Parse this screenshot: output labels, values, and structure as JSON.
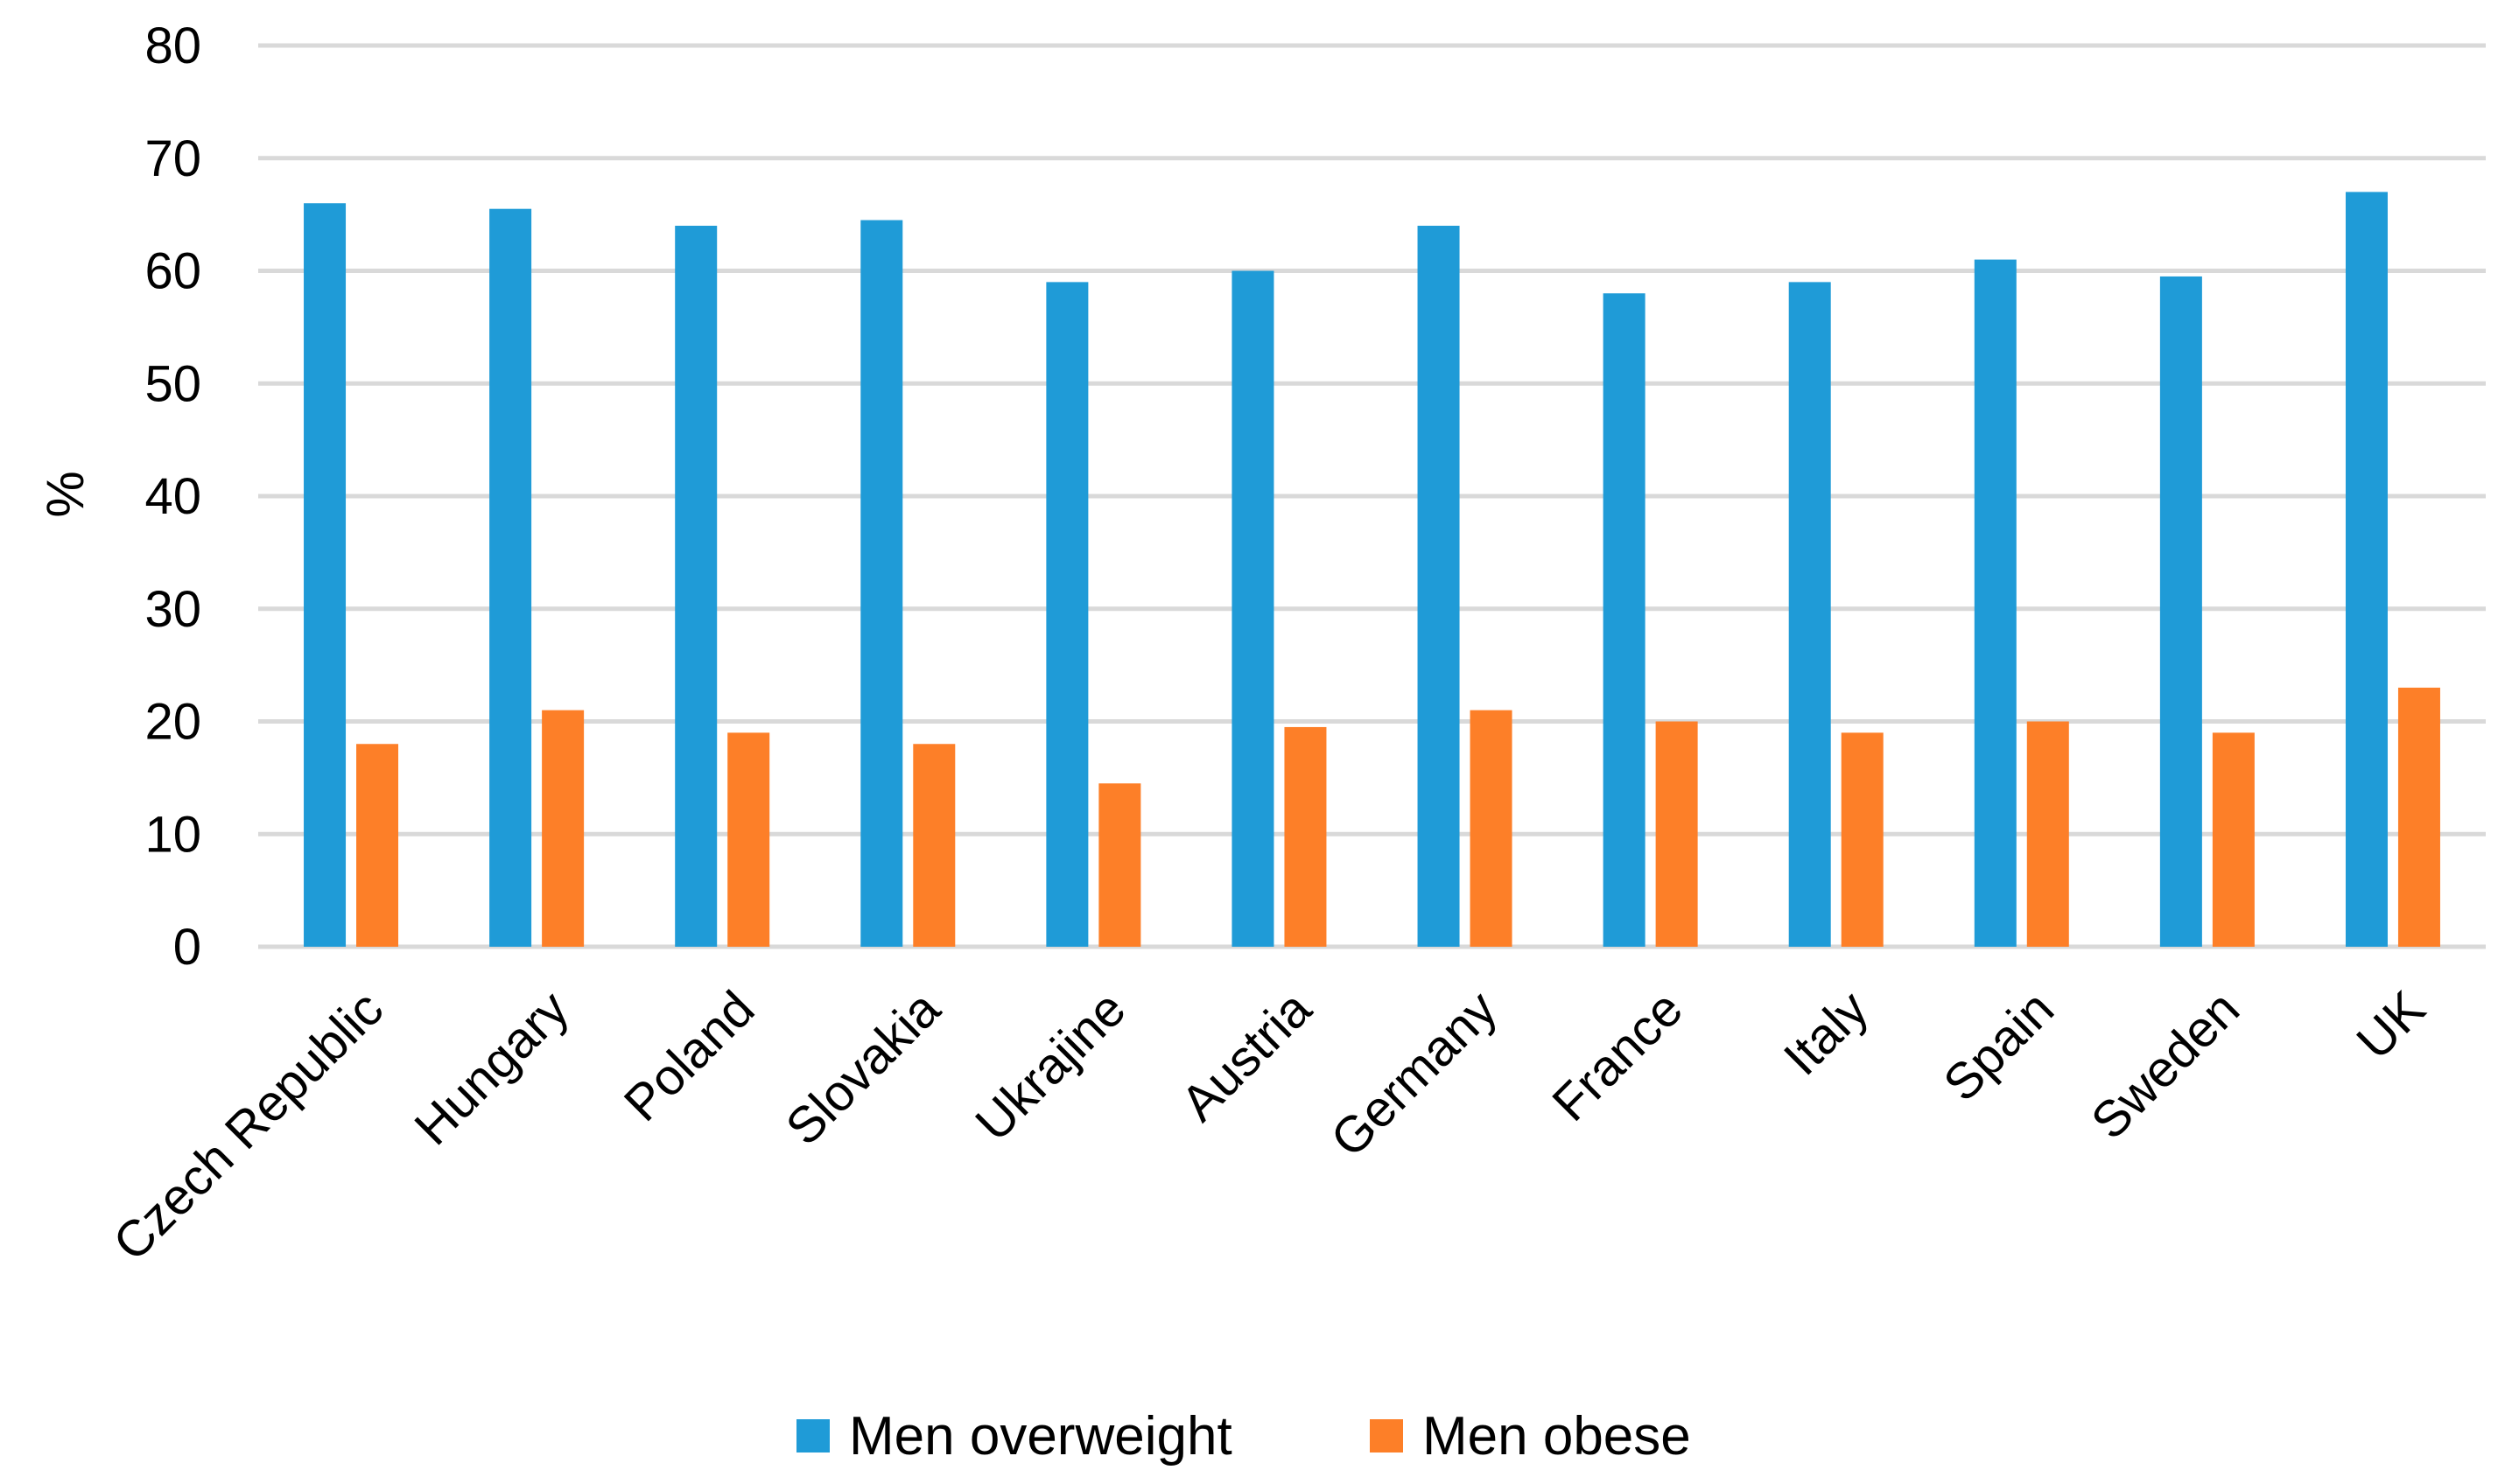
{
  "chart_data": {
    "type": "bar",
    "title": "",
    "xlabel": "",
    "ylabel": "%",
    "ylim": [
      0,
      80
    ],
    "yticks": [
      0,
      10,
      20,
      30,
      40,
      50,
      60,
      70,
      80
    ],
    "grid": true,
    "legend_position": "bottom",
    "categories": [
      "Czech Republic",
      "Hungary",
      "Poland",
      "Slovakia",
      "Ukrajine",
      "Austria",
      "Germany",
      "France",
      "Italy",
      "Spain",
      "Sweden",
      "UK"
    ],
    "series": [
      {
        "name": "Men overweight",
        "color": "#1f9bd7",
        "values": [
          66,
          65.5,
          64,
          64.5,
          59,
          60,
          64,
          58,
          59,
          61,
          59.5,
          67
        ]
      },
      {
        "name": "Men obese",
        "color": "#fd7f28",
        "values": [
          18,
          21,
          19,
          18,
          14.5,
          19.5,
          21,
          20,
          19,
          20,
          19,
          23
        ]
      }
    ]
  }
}
